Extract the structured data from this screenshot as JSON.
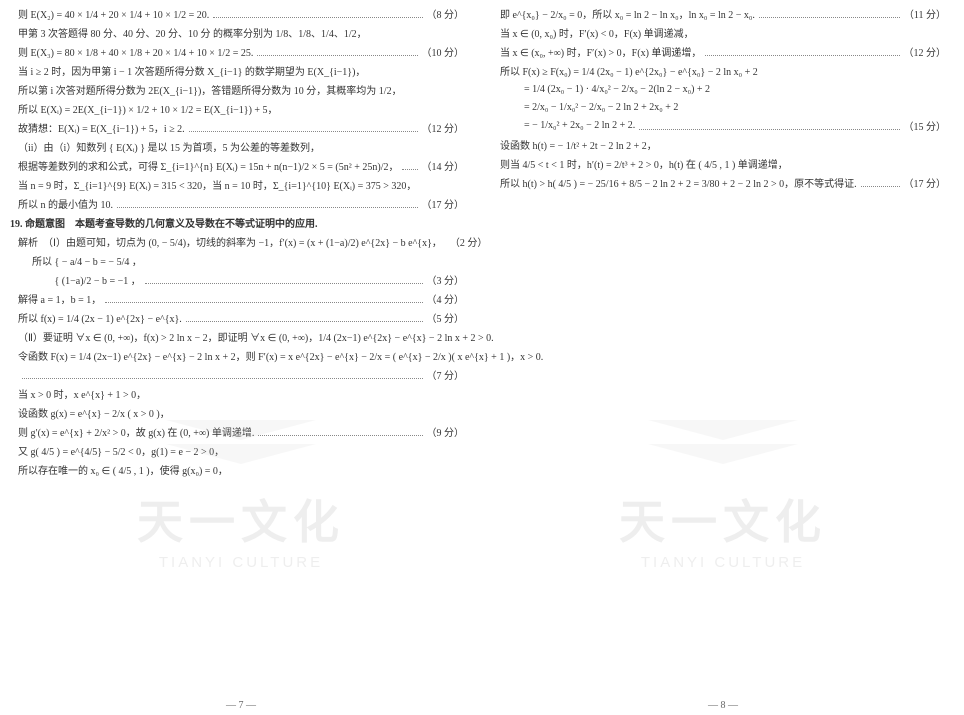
{
  "watermark": {
    "cn": "天一文化",
    "en": "TIANYI CULTURE",
    "chev_color": "#bfbfbf"
  },
  "page_left_num": "— 7 —",
  "page_right_num": "— 8 —",
  "left": [
    {
      "t": "则 E(X₂) = 40 × 1/4 + 20 × 1/4 + 10 × 1/2 = 20.",
      "s": "（8 分）",
      "dots": true
    },
    {
      "t": "甲第 3 次答题得 80 分、40 分、20 分、10 分 的概率分别为 1/8、1/8、1/4、1/2，",
      "dots": false
    },
    {
      "t": "则 E(X₃) = 80 × 1/8 + 40 × 1/8 + 20 × 1/4 + 10 × 1/2 = 25.",
      "s": "（10 分）",
      "dots": true
    },
    {
      "t": "当 i ≥ 2 时，因为甲第 i − 1 次答题所得分数 X_{i−1} 的数学期望为 E(X_{i−1})，",
      "dots": false
    },
    {
      "t": "所以第 i 次答对题所得分数为 2E(X_{i−1})，答错题所得分数为 10 分，其概率均为 1/2，",
      "dots": false
    },
    {
      "t": "所以 E(Xᵢ) = 2E(X_{i−1}) × 1/2 + 10 × 1/2 = E(X_{i−1}) + 5，",
      "dots": false
    },
    {
      "t": "故猜想：E(Xᵢ) = E(X_{i−1}) + 5，i ≥ 2.",
      "s": "（12 分）",
      "dots": true
    },
    {
      "t": "（ii）由（i）知数列 { E(Xᵢ) } 是以 15 为首项，5 为公差的等差数列，",
      "dots": false
    },
    {
      "t": "根据等差数列的求和公式，可得 Σ_{i=1}^{n} E(Xᵢ) = 15n + n(n−1)/2 × 5 = (5n² + 25n)/2，",
      "s": "（14 分）",
      "dots": true
    },
    {
      "t": "当 n = 9 时，Σ_{i=1}^{9} E(Xᵢ) = 315 < 320，当 n = 10 时，Σ_{i=1}^{10} E(Xᵢ) = 375 > 320，",
      "dots": false
    },
    {
      "t": "所以 n 的最小值为 10.",
      "s": "（17 分）",
      "dots": true
    },
    {
      "t": "19. 命题意图　本题考查导数的几何意义及导数在不等式证明中的应用.",
      "bold": true,
      "outdent": true,
      "dots": false
    },
    {
      "t": "解析　（Ⅰ）由题可知，切点为 (0, − 5/4)，切线的斜率为 −1，f′(x) = (x + (1−a)/2) e^{2x} − b e^{x}，",
      "s": "（2 分）",
      "dots": true
    },
    {
      "t": "所以 { − a/4 − b = − 5/4 ，",
      "dots": false,
      "indent": 1
    },
    {
      "t": "　　 { (1−a)/2 − b = −1 ，",
      "s": "（3 分）",
      "dots": true,
      "indent": 1
    },
    {
      "t": "解得 a = 1，b = 1，",
      "s": "（4 分）",
      "dots": true
    },
    {
      "t": "所以 f(x) = 1/4 (2x − 1) e^{2x} − e^{x}.",
      "s": "（5 分）",
      "dots": true
    },
    {
      "t": "（Ⅱ）要证明 ∀x ∈ (0, +∞)，f(x) > 2 ln x − 2，即证明 ∀x ∈ (0, +∞)，1/4 (2x−1) e^{2x} − e^{x} − 2 ln x + 2 > 0.",
      "dots": false
    },
    {
      "t": "令函数 F(x) = 1/4 (2x−1) e^{2x} − e^{x} − 2 ln x + 2，则 F′(x) = x e^{2x} − e^{x} − 2/x = ( e^{x} − 2/x )( x e^{x} + 1 )，x > 0.",
      "dots": false
    },
    {
      "t": "",
      "s": "（7 分）",
      "dots": true
    },
    {
      "t": "当 x > 0 时，x e^{x} + 1 > 0，",
      "dots": false
    },
    {
      "t": "设函数 g(x) = e^{x} − 2/x ( x > 0 )，",
      "dots": false
    },
    {
      "t": "则 g′(x) = e^{x} + 2/x² > 0，故 g(x) 在 (0, +∞) 单调递增.",
      "s": "（9 分）",
      "dots": true
    },
    {
      "t": "又 g( 4/5 ) = e^{4/5} − 5/2 < 0，g(1) = e − 2 > 0，",
      "dots": false
    },
    {
      "t": "所以存在唯一的 x₀ ∈ ( 4/5 , 1 )，使得 g(x₀) = 0，",
      "dots": false
    }
  ],
  "right": [
    {
      "t": "即 e^{x₀} − 2/x₀ = 0，所以 x₀ = ln 2 − ln x₀，ln x₀ = ln 2 − x₀.",
      "s": "（11 分）",
      "dots": true
    },
    {
      "t": "当 x ∈ (0, x₀) 时，F′(x) < 0，F(x) 单调递减，",
      "dots": false
    },
    {
      "t": "当 x ∈ (x₀, +∞) 时，F′(x) > 0，F(x) 单调递增，",
      "s": "（12 分）",
      "dots": true
    },
    {
      "t": "所以 F(x) ≥ F(x₀) = 1/4 (2x₀ − 1) e^{2x₀} − e^{x₀} − 2 ln x₀ + 2",
      "dots": false
    },
    {
      "t": "= 1/4 (2x₀ − 1) · 4/x₀² − 2/x₀ − 2(ln 2 − x₀) + 2",
      "dots": false,
      "indent": 2
    },
    {
      "t": "= 2/x₀ − 1/x₀² − 2/x₀ − 2 ln 2 + 2x₀ + 2",
      "dots": false,
      "indent": 2
    },
    {
      "t": "= − 1/x₀² + 2x₀ − 2 ln 2 + 2.",
      "s": "（15 分）",
      "dots": true,
      "indent": 2
    },
    {
      "t": "设函数 h(t) = − 1/t² + 2t − 2 ln 2 + 2，",
      "dots": false
    },
    {
      "t": "则当 4/5 < t < 1 时，h′(t) = 2/t³ + 2 > 0，h(t) 在 ( 4/5 , 1 ) 单调递增，",
      "dots": false
    },
    {
      "t": "所以 h(t) > h( 4/5 ) = − 25/16 + 8/5 − 2 ln 2 + 2 = 3/80 + 2 − 2 ln 2 > 0，原不等式得证.",
      "s": "（17 分）",
      "dots": true
    }
  ]
}
